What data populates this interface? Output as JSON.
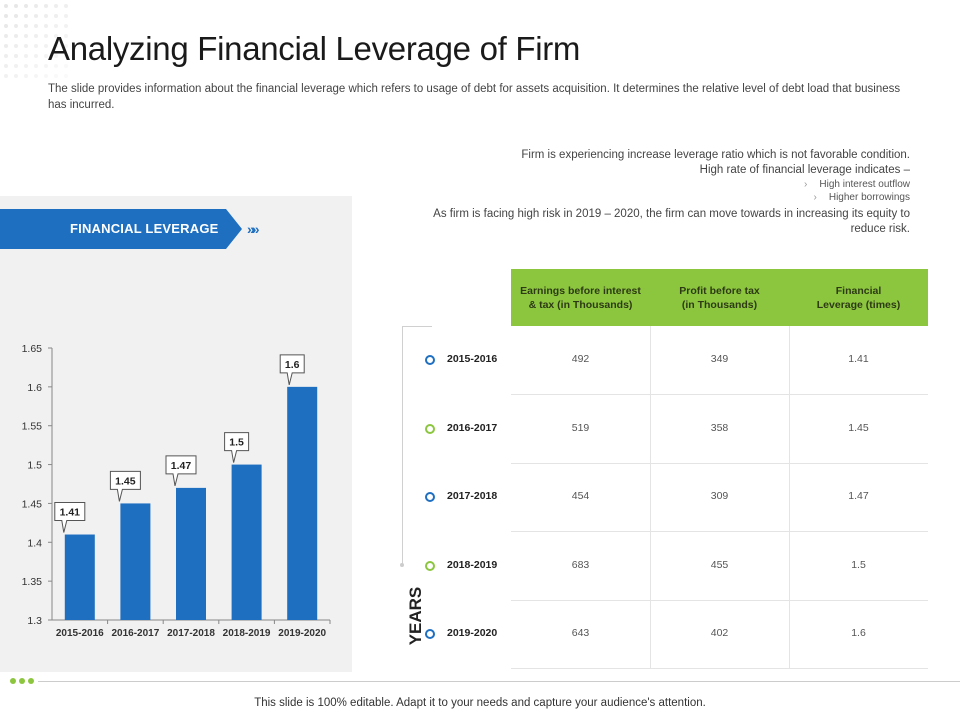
{
  "title": "Analyzing Financial Leverage of Firm",
  "subtitle": "The slide provides information about the financial leverage which refers to usage of debt for assets acquisition. It determines the relative level of debt load that business has incurred.",
  "banner": {
    "label": "FINANCIAL LEVERAGE",
    "chevrons": "»»"
  },
  "notes": {
    "line1": "Firm is experiencing increase leverage ratio which is not favorable condition.",
    "line2": "High rate of financial leverage indicates –",
    "bullet1": "High interest outflow",
    "bullet2": "Higher borrowings",
    "line3a": "As firm is facing high risk in 2019 – 2020, the firm can move towards in increasing its equity to",
    "line3b": "reduce risk."
  },
  "table": {
    "headers": [
      [
        "Earnings before interest",
        "& tax (in Thousands)"
      ],
      [
        "Profit before tax",
        "(in Thousands)"
      ],
      [
        "Financial",
        "Leverage (times)"
      ]
    ],
    "years_label": "YEARS",
    "rows": [
      {
        "year": "2015-2016",
        "ebit": "492",
        "pbt": "349",
        "lev": "1.41"
      },
      {
        "year": "2016-2017",
        "ebit": "519",
        "pbt": "358",
        "lev": "1.45"
      },
      {
        "year": "2017-2018",
        "ebit": "454",
        "pbt": "309",
        "lev": "1.47"
      },
      {
        "year": "2018-2019",
        "ebit": "683",
        "pbt": "455",
        "lev": "1.5"
      },
      {
        "year": "2019-2020",
        "ebit": "643",
        "pbt": "402",
        "lev": "1.6"
      }
    ]
  },
  "chart_data": {
    "type": "bar",
    "categories": [
      "2015-2016",
      "2016-2017",
      "2017-2018",
      "2018-2019",
      "2019-2020"
    ],
    "values": [
      1.41,
      1.45,
      1.47,
      1.5,
      1.6
    ],
    "data_labels": [
      "1.41",
      "1.45",
      "1.47",
      "1.5",
      "1.6"
    ],
    "yticks": [
      "1.3",
      "1.35",
      "1.4",
      "1.45",
      "1.5",
      "1.55",
      "1.6",
      "1.65"
    ],
    "ylim": [
      1.3,
      1.65
    ],
    "title": "",
    "xlabel": "",
    "ylabel": "",
    "grid": false,
    "bar_color": "#1f6fc1"
  },
  "colors": {
    "blue": "#1f6fc1",
    "green": "#8cc63f"
  },
  "footer": "This slide is 100% editable. Adapt it to your needs and capture your audience's attention."
}
